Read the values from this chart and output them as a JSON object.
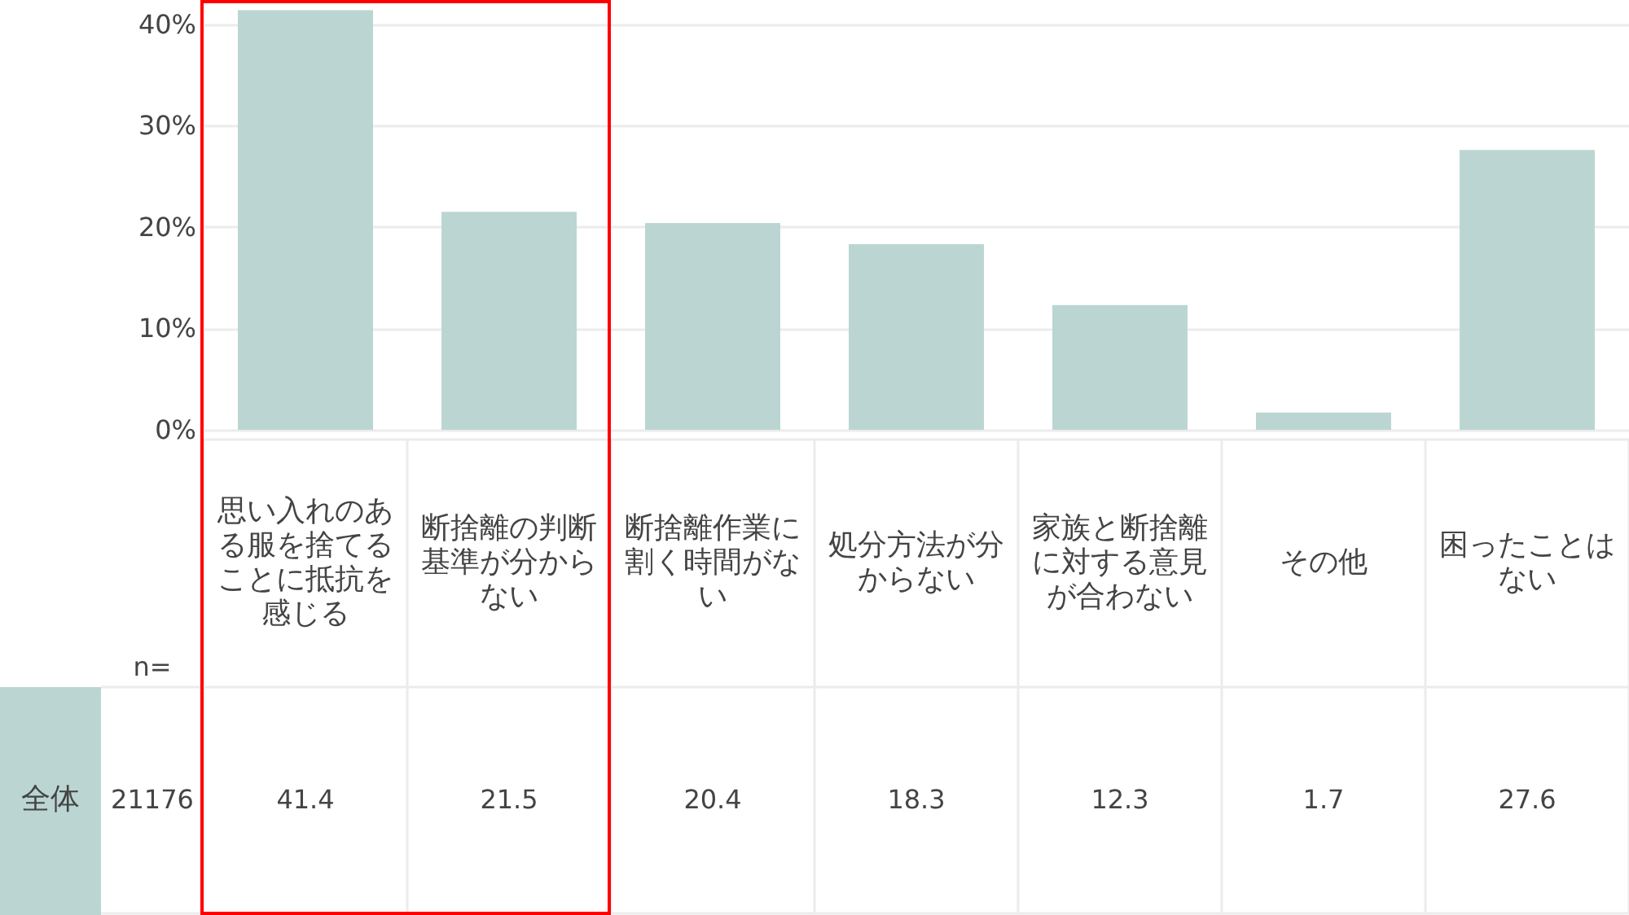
{
  "chart_data": {
    "type": "bar",
    "categories": [
      "思い入れのある服を捨てることに抵抗を感じる",
      "断捨離の判断基準が分からない",
      "断捨離作業に割く時間がない",
      "処分方法が分からない",
      "家族と断捨離に対する意見が合わない",
      "その他",
      "困ったことはない"
    ],
    "series": [
      {
        "name": "全体",
        "color": "#bbd6d2",
        "values": [
          41.4,
          21.5,
          20.4,
          18.3,
          12.3,
          1.7,
          27.6
        ]
      }
    ],
    "ylim": [
      0,
      42.4
    ],
    "yticks": [
      {
        "value": 0,
        "label": "0%"
      },
      {
        "value": 10,
        "label": "10%"
      },
      {
        "value": 20,
        "label": "20%"
      },
      {
        "value": 30,
        "label": "30%"
      },
      {
        "value": 40,
        "label": "40%"
      }
    ],
    "grid": "y",
    "data_labels": true,
    "annotations": [
      "n=",
      "21176"
    ]
  }
}
